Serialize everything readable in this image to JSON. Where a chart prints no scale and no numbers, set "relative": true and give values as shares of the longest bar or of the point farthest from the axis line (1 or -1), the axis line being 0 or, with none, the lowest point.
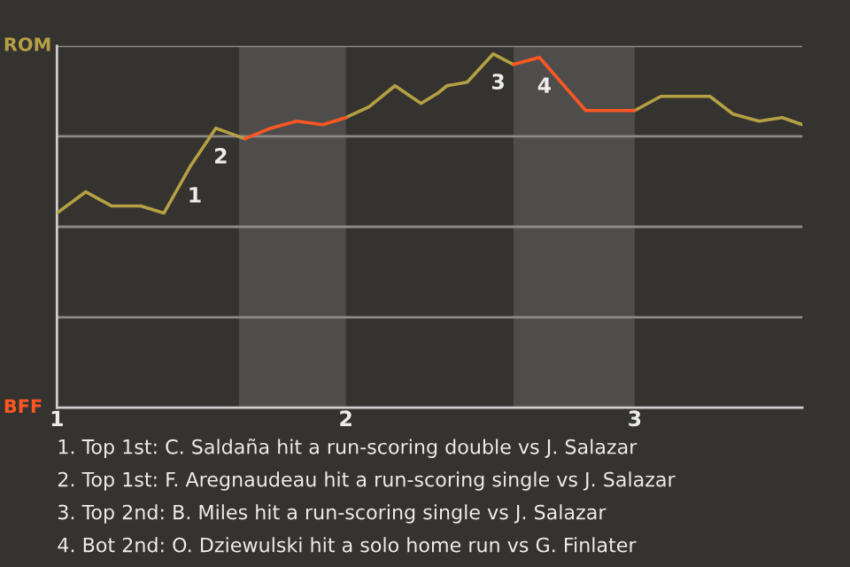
{
  "chart_data": {
    "type": "line",
    "relative": true,
    "x": [
      1.0,
      1.1,
      1.19,
      1.29,
      1.37,
      1.46,
      1.55,
      1.65,
      1.74,
      1.83,
      1.92,
      2.0,
      2.08,
      2.17,
      2.26,
      2.32,
      2.35,
      2.42,
      2.51,
      2.58,
      2.67,
      2.83,
      2.91,
      3.0,
      3.09,
      3.26,
      3.34,
      3.43,
      3.51,
      3.58
    ],
    "series": [
      {
        "color": "#b5a043",
        "values": [
          0.55,
          0.61,
          0.57,
          0.57,
          0.55,
          0.68,
          0.79,
          0.76,
          null,
          null,
          null,
          0.82,
          0.85,
          0.91,
          0.86,
          0.89,
          0.91,
          0.92,
          1,
          0.97,
          null,
          null,
          null,
          0.84,
          0.88,
          0.88,
          0.83,
          0.81,
          0.82,
          0.8
        ]
      },
      {
        "color": "#ff5722",
        "values": [
          null,
          null,
          null,
          null,
          null,
          null,
          null,
          0.76,
          0.79,
          0.81,
          0.8,
          0.82,
          null,
          null,
          null,
          null,
          null,
          null,
          null,
          0.97,
          0.99,
          0.84,
          0.84,
          0.84,
          null,
          null,
          null,
          null,
          null,
          null
        ]
      }
    ],
    "xlim": [
      1,
      3.58
    ],
    "xticks": [
      1,
      2,
      3
    ],
    "grid": "y",
    "bands": [
      {
        "axis": "x",
        "from": 1.63,
        "to": 2.0,
        "color": "#4e4d4b"
      },
      {
        "axis": "x",
        "from": 2.58,
        "to": 3.0,
        "color": "#4e4d4b"
      }
    ],
    "annotations": [
      "ROM",
      "BFF",
      {
        "text": "1",
        "x": 1.46,
        "y": 0.68
      },
      {
        "text": "2",
        "x": 1.55,
        "y": 0.79
      },
      {
        "text": "3",
        "x": 2.51,
        "y": 1
      },
      {
        "text": "4",
        "x": 2.67,
        "y": 0.99
      },
      "1. Top 1st: C. Saldaña hit a run-scoring double vs J. Salazar",
      "2. Top 1st: F. Aregnaudeau hit a run-scoring single vs J. Salazar",
      "3. Top 2nd: B. Miles hit a run-scoring single vs J. Salazar",
      "4. Bot 2nd: O. Dziewulski hit a solo home run vs G. Finlater"
    ]
  }
}
